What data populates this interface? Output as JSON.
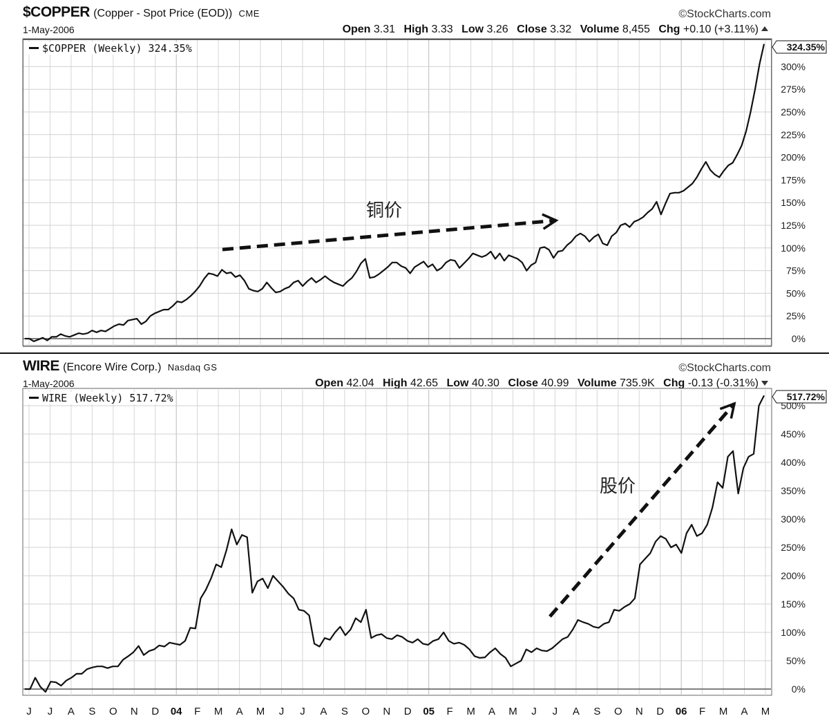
{
  "header1": {
    "symbol": "$COPPER",
    "name": "(Copper - Spot Price (EOD))",
    "exchange": "CME",
    "brand": "©StockCharts.com",
    "date": "1-May-2006",
    "stats": [
      {
        "label": "Open",
        "value": "3.31"
      },
      {
        "label": "High",
        "value": "3.33"
      },
      {
        "label": "Low",
        "value": "3.26"
      },
      {
        "label": "Close",
        "value": "3.32"
      },
      {
        "label": "Volume",
        "value": "8,455"
      },
      {
        "label": "Chg",
        "value": "+0.10 (+3.11%)"
      }
    ],
    "legend": "$COPPER (Weekly) 324.35%",
    "last_value_label": "324.35%",
    "annotation": "铜价"
  },
  "header2": {
    "symbol": "WIRE",
    "name": "(Encore Wire Corp.)",
    "exchange": "Nasdaq GS",
    "brand": "©StockCharts.com",
    "date": "1-May-2006",
    "stats": [
      {
        "label": "Open",
        "value": "42.04"
      },
      {
        "label": "High",
        "value": "42.65"
      },
      {
        "label": "Low",
        "value": "40.30"
      },
      {
        "label": "Close",
        "value": "40.99"
      },
      {
        "label": "Volume",
        "value": "735.9K"
      },
      {
        "label": "Chg",
        "value": "-0.13 (-0.31%)"
      }
    ],
    "legend": "WIRE (Weekly) 517.72%",
    "last_value_label": "517.72%",
    "annotation": "股价"
  },
  "x_axis_labels": [
    "J",
    "J",
    "A",
    "S",
    "O",
    "N",
    "D",
    "04",
    "F",
    "M",
    "A",
    "M",
    "J",
    "J",
    "A",
    "S",
    "O",
    "N",
    "D",
    "05",
    "F",
    "M",
    "A",
    "M",
    "J",
    "J",
    "A",
    "S",
    "O",
    "N",
    "D",
    "06",
    "F",
    "M",
    "A",
    "M"
  ],
  "chart_data": [
    {
      "type": "line",
      "title": "$COPPER (Copper - Spot Price (EOD)) CME",
      "series": [
        {
          "name": "$COPPER (Weekly)",
          "values": [
            0,
            0,
            -3,
            -1,
            1,
            -2,
            2,
            2,
            5,
            3,
            2,
            4,
            6,
            5,
            6,
            9,
            7,
            9,
            8,
            11,
            14,
            16,
            15,
            20,
            21,
            22,
            16,
            19,
            25,
            28,
            30,
            32,
            32,
            36,
            41,
            40,
            43,
            47,
            52,
            58,
            66,
            72,
            71,
            69,
            76,
            72,
            73,
            68,
            70,
            64,
            55,
            53,
            52,
            55,
            62,
            56,
            51,
            52,
            55,
            57,
            62,
            64,
            58,
            63,
            67,
            62,
            65,
            69,
            65,
            62,
            60,
            58,
            63,
            67,
            74,
            83,
            88,
            67,
            68,
            71,
            75,
            79,
            84,
            84,
            80,
            78,
            72,
            79,
            82,
            85,
            79,
            82,
            75,
            78,
            84,
            87,
            86,
            78,
            83,
            88,
            94,
            92,
            90,
            92,
            96,
            88,
            94,
            86,
            92,
            90,
            88,
            84,
            75,
            81,
            84,
            100,
            101,
            98,
            89,
            96,
            97,
            103,
            107,
            113,
            116,
            113,
            107,
            112,
            115,
            105,
            103,
            113,
            117,
            125,
            127,
            123,
            129,
            131,
            134,
            139,
            143,
            151,
            137,
            149,
            160,
            161,
            161,
            163,
            167,
            171,
            178,
            187,
            195,
            186,
            181,
            178,
            185,
            191,
            194,
            203,
            213,
            229,
            250,
            275,
            303,
            325
          ]
        }
      ],
      "y_ticks": [
        0,
        25,
        50,
        75,
        100,
        125,
        150,
        175,
        200,
        225,
        250,
        275,
        300
      ],
      "ylim": [
        -6,
        329
      ],
      "y_unit": "%"
    },
    {
      "type": "line",
      "title": "WIRE (Encore Wire Corp.) Nasdaq GS",
      "series": [
        {
          "name": "WIRE (Weekly)",
          "values": [
            0,
            0,
            20,
            4,
            -5,
            13,
            12,
            6,
            15,
            20,
            27,
            27,
            35,
            38,
            40,
            40,
            37,
            40,
            40,
            52,
            58,
            65,
            76,
            60,
            67,
            70,
            77,
            75,
            82,
            80,
            78,
            85,
            108,
            107,
            160,
            175,
            195,
            220,
            215,
            245,
            282,
            255,
            272,
            268,
            170,
            190,
            195,
            178,
            200,
            190,
            180,
            168,
            160,
            140,
            138,
            130,
            80,
            75,
            90,
            87,
            100,
            110,
            95,
            105,
            125,
            118,
            140,
            90,
            95,
            97,
            90,
            88,
            95,
            92,
            85,
            82,
            88,
            80,
            78,
            85,
            88,
            100,
            85,
            80,
            82,
            78,
            70,
            58,
            55,
            56,
            65,
            72,
            62,
            55,
            40,
            45,
            50,
            70,
            65,
            72,
            68,
            67,
            72,
            80,
            88,
            92,
            105,
            122,
            118,
            115,
            110,
            108,
            115,
            118,
            140,
            138,
            145,
            150,
            160,
            220,
            230,
            240,
            260,
            270,
            265,
            250,
            255,
            240,
            275,
            290,
            270,
            275,
            290,
            320,
            365,
            355,
            410,
            420,
            345,
            390,
            410,
            415,
            500,
            518
          ]
        }
      ],
      "y_ticks": [
        0,
        50,
        100,
        150,
        200,
        250,
        300,
        350,
        400,
        450,
        500
      ],
      "ylim": [
        -40,
        532
      ],
      "y_unit": "%"
    }
  ]
}
